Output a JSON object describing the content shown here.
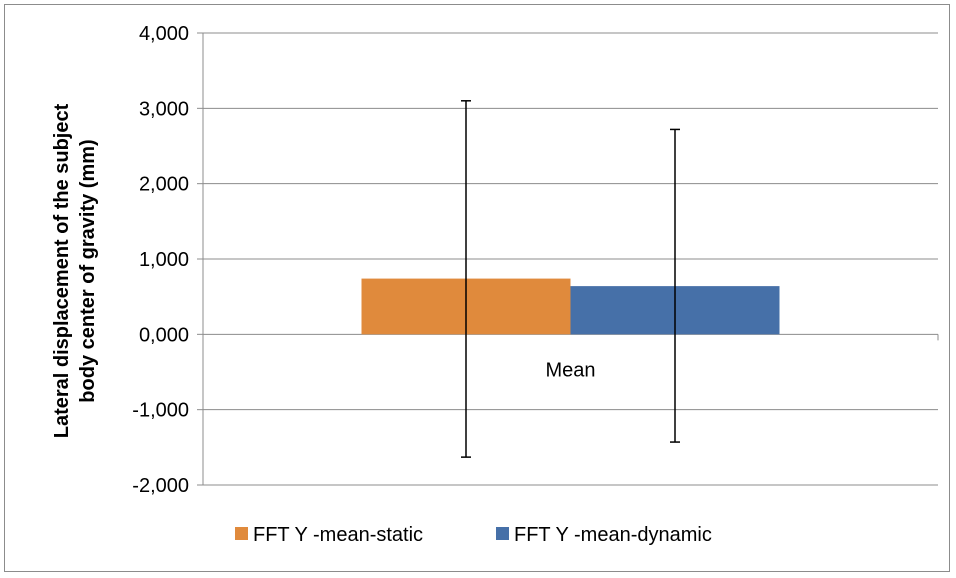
{
  "chart_data": {
    "type": "bar",
    "categories": [
      "Mean"
    ],
    "series": [
      {
        "name": "FFT Y -mean-static",
        "values": [
          0.74
        ],
        "error_plus": [
          2.36
        ],
        "error_minus": [
          2.37
        ],
        "color": "#E08A3C"
      },
      {
        "name": "FFT Y -mean-dynamic",
        "values": [
          0.64
        ],
        "error_plus": [
          2.08
        ],
        "error_minus": [
          2.07
        ],
        "color": "#4670A8"
      }
    ],
    "title": "",
    "xlabel": "",
    "ylabel_lines": [
      "Lateral displacement of the subject",
      "body center of gravity (mm)"
    ],
    "ylim": [
      -2,
      4
    ],
    "yticks": [
      4,
      3,
      2,
      1,
      0,
      -1,
      -2
    ],
    "ytick_labels": [
      "4,000",
      "3,000",
      "2,000",
      "1,000",
      "0,000",
      "-1,000",
      "-2,000"
    ],
    "grid": true,
    "legend_position": "bottom"
  }
}
